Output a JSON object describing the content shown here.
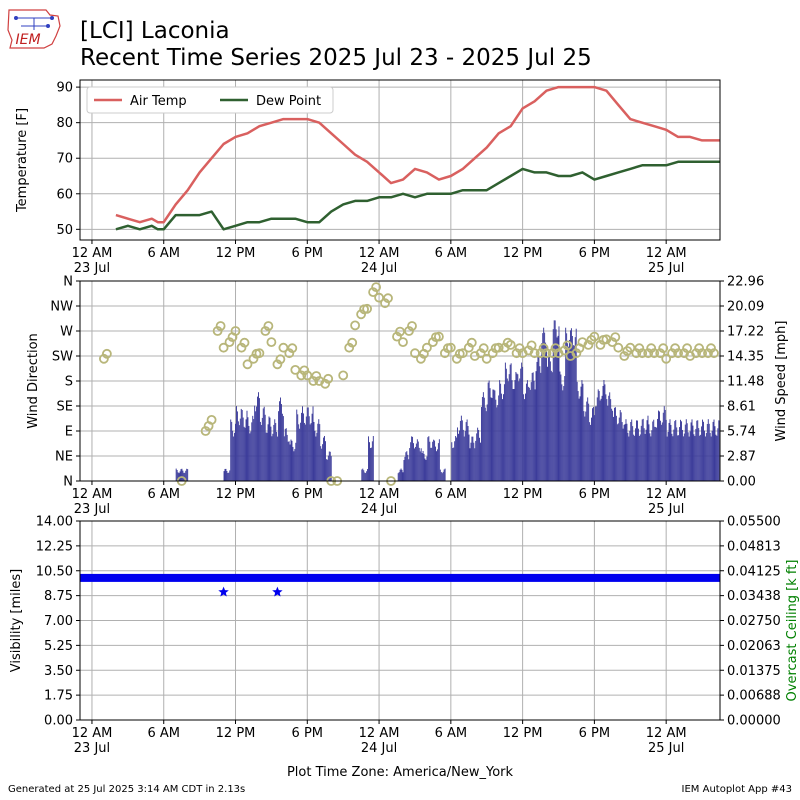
{
  "header": {
    "title_line1": "[LCI] Laconia",
    "title_line2": "Recent Time Series 2025 Jul 23 - 2025 Jul 25",
    "logo_text": "IEM"
  },
  "footer": {
    "generated": "Generated at 25 Jul 2025 3:14 AM CDT in 2.13s",
    "app": "IEM Autoplot App #43",
    "timezone_label": "Plot Time Zone: America/New_York"
  },
  "colors": {
    "air_temp": "#d9605f",
    "dew_point": "#2f6030",
    "wind_dir": "#b8b67a",
    "wind_speed": "#3b3b9a",
    "visibility": "#0000ee",
    "ceiling_axis": "#008000"
  },
  "x_axis": {
    "start_hour": -1,
    "end_hour": 52.5,
    "ticks": [
      {
        "hour": 0,
        "label": "12 AM",
        "sub": "23 Jul"
      },
      {
        "hour": 6,
        "label": "6 AM",
        "sub": ""
      },
      {
        "hour": 12,
        "label": "12 PM",
        "sub": ""
      },
      {
        "hour": 18,
        "label": "6 PM",
        "sub": ""
      },
      {
        "hour": 24,
        "label": "12 AM",
        "sub": "24 Jul"
      },
      {
        "hour": 30,
        "label": "6 AM",
        "sub": ""
      },
      {
        "hour": 36,
        "label": "12 PM",
        "sub": ""
      },
      {
        "hour": 42,
        "label": "6 PM",
        "sub": ""
      },
      {
        "hour": 48,
        "label": "12 AM",
        "sub": "25 Jul"
      }
    ]
  },
  "chart_data": [
    {
      "type": "line",
      "ylabel": "Temperature [F]",
      "ylim": [
        47,
        92
      ],
      "yticks": [
        50,
        60,
        70,
        80,
        90
      ],
      "grid": true,
      "legend": "top-left",
      "series": [
        {
          "name": "Air Temp",
          "x": [
            2,
            3,
            4,
            5,
            5.5,
            6,
            7,
            8,
            9,
            10,
            11,
            12,
            13,
            14,
            15,
            16,
            17,
            18,
            19,
            20,
            21,
            22,
            23,
            24,
            25,
            26,
            27,
            28,
            29,
            30,
            31,
            32,
            33,
            34,
            35,
            36,
            37,
            38,
            39,
            40,
            41,
            42,
            43,
            44,
            45,
            46,
            47,
            48,
            49,
            50,
            51,
            52,
            52.5
          ],
          "y": [
            54,
            53,
            52,
            53,
            52,
            52,
            57,
            61,
            66,
            70,
            74,
            76,
            77,
            79,
            80,
            81,
            81,
            81,
            80,
            77,
            74,
            71,
            69,
            66,
            63,
            64,
            67,
            66,
            64,
            65,
            67,
            70,
            73,
            77,
            79,
            84,
            86,
            89,
            90,
            90,
            90,
            90,
            89,
            85,
            81,
            80,
            79,
            78,
            76,
            76,
            75,
            75,
            75
          ]
        },
        {
          "name": "Dew Point",
          "x": [
            2,
            3,
            4,
            5,
            5.5,
            6,
            7,
            8,
            9,
            10,
            11,
            12,
            13,
            14,
            15,
            16,
            17,
            18,
            19,
            20,
            21,
            22,
            23,
            24,
            25,
            26,
            27,
            28,
            29,
            30,
            31,
            32,
            33,
            34,
            35,
            36,
            37,
            38,
            39,
            40,
            41,
            42,
            43,
            44,
            45,
            46,
            47,
            48,
            49,
            50,
            51,
            52,
            52.5
          ],
          "y": [
            50,
            51,
            50,
            51,
            50,
            50,
            54,
            54,
            54,
            55,
            50,
            51,
            52,
            52,
            53,
            53,
            53,
            52,
            52,
            55,
            57,
            58,
            58,
            59,
            59,
            60,
            59,
            60,
            60,
            60,
            61,
            61,
            61,
            63,
            65,
            67,
            66,
            66,
            65,
            65,
            66,
            64,
            65,
            66,
            67,
            68,
            68,
            68,
            69,
            69,
            69,
            69,
            69
          ]
        }
      ]
    },
    {
      "type": "bar",
      "ylabel": "Wind Direction",
      "y2label": "Wind Speed [mph]",
      "ylim": [
        0,
        360
      ],
      "yticks": [
        0,
        45,
        90,
        135,
        180,
        225,
        270,
        315,
        360
      ],
      "ytick_labels": [
        "N",
        "NE",
        "E",
        "SE",
        "S",
        "SW",
        "W",
        "NW",
        "N"
      ],
      "y2lim": [
        0,
        22.96
      ],
      "y2ticks": [
        "0.00",
        "2.87",
        "5.74",
        "8.61",
        "11.48",
        "14.35",
        "17.22",
        "20.09",
        "22.96"
      ],
      "grid": true,
      "wind_speed_mph": {
        "x": [
          -1,
          1,
          2,
          4,
          6,
          7,
          7.5,
          8,
          9,
          9.5,
          10,
          11,
          11.5,
          12,
          12.5,
          13,
          13.5,
          14,
          14.5,
          15,
          15.5,
          16,
          16.5,
          17,
          17.5,
          18,
          18.5,
          19,
          19.5,
          20,
          20.5,
          21,
          21.5,
          22,
          22.5,
          23,
          23.5,
          24,
          24.5,
          25,
          25.5,
          26,
          26.5,
          27,
          27.5,
          28,
          28.5,
          29,
          29.5,
          30,
          30.5,
          31,
          31.5,
          32,
          32.5,
          33,
          33.5,
          34,
          34.5,
          35,
          35.5,
          36,
          36.5,
          37,
          37.5,
          38,
          38.5,
          39,
          39.5,
          40,
          40.5,
          41,
          41.5,
          42,
          42.5,
          43,
          43.5,
          44,
          44.5,
          45,
          45.5,
          46,
          46.5,
          47,
          47.5,
          48,
          48.5,
          49,
          49.5,
          50,
          50.5,
          51,
          51.5,
          52
        ],
        "y": [
          0,
          0,
          0,
          0,
          0,
          1.5,
          1.5,
          0,
          0,
          0,
          0,
          1.5,
          5.7,
          7,
          6.6,
          6,
          8.6,
          7,
          6,
          5.7,
          8,
          5,
          4,
          6.6,
          7,
          7,
          5.7,
          4.3,
          3,
          0,
          0,
          0,
          0,
          0,
          1.5,
          4.3,
          0,
          0,
          0,
          0,
          1.5,
          3,
          4.3,
          4,
          3,
          4.3,
          4,
          1.5,
          0,
          4.3,
          6,
          5.7,
          4.3,
          5,
          8.6,
          10,
          9,
          10,
          12,
          11,
          12,
          10,
          11,
          13,
          16,
          13,
          17,
          11,
          16,
          16,
          10,
          8,
          7,
          9,
          10,
          8.6,
          7,
          6.6,
          5.7,
          5.7,
          5.7,
          6,
          5.7,
          6.6,
          7,
          5.7,
          5.7,
          5.7,
          5.7,
          5.7,
          5.7,
          5.7,
          5.7,
          5.7
        ]
      },
      "wind_direction_deg": {
        "x": [
          1,
          7.5,
          9.5,
          10,
          10.5,
          11,
          11.5,
          12,
          12.5,
          13,
          13.5,
          14,
          14.5,
          15,
          15.5,
          16,
          16.5,
          17,
          17.5,
          18,
          18.5,
          19,
          19.5,
          20,
          20.5,
          21,
          21.5,
          22,
          22.5,
          23,
          23.5,
          24,
          24.5,
          25,
          25.5,
          26,
          26.5,
          27,
          27.5,
          28,
          28.5,
          29,
          29.5,
          30,
          30.5,
          31,
          31.5,
          32,
          32.5,
          33,
          33.5,
          34,
          34.5,
          35,
          35.5,
          36,
          36.5,
          37,
          37.5,
          38,
          38.5,
          39,
          39.5,
          40,
          40.5,
          41,
          41.5,
          42,
          42.5,
          43,
          43.5,
          44,
          44.5,
          45,
          45.5,
          46,
          46.5,
          47,
          47.5,
          48,
          48.5,
          49,
          49.5,
          50,
          50.5,
          51,
          51.5,
          52
        ],
        "y": [
          220,
          0,
          90,
          110,
          270,
          240,
          250,
          270,
          240,
          210,
          220,
          230,
          270,
          250,
          210,
          240,
          230,
          200,
          190,
          190,
          180,
          180,
          175,
          0,
          0,
          190,
          240,
          280,
          300,
          310,
          340,
          330,
          320,
          0,
          260,
          250,
          270,
          230,
          220,
          240,
          250,
          260,
          230,
          240,
          220,
          230,
          240,
          225,
          230,
          220,
          230,
          240,
          240,
          245,
          230,
          230,
          235,
          230,
          230,
          230,
          230,
          230,
          235,
          225,
          230,
          250,
          245,
          260,
          245,
          255,
          250,
          240,
          225,
          240,
          230,
          230,
          230,
          230,
          230,
          220,
          230,
          230,
          230,
          225,
          230,
          230,
          230,
          230
        ]
      }
    },
    {
      "type": "scatter",
      "ylabel": "Visibility [miles]",
      "y2label": "Overcast Ceiling [k ft]",
      "ylim": [
        0,
        14
      ],
      "yticks": [
        "0.00",
        "1.75",
        "3.50",
        "5.25",
        "7.00",
        "8.75",
        "10.50",
        "12.25",
        "14.00"
      ],
      "y2lim": [
        0,
        0.055
      ],
      "y2ticks": [
        "0.00000",
        "0.00688",
        "0.01375",
        "0.02063",
        "0.02750",
        "0.03438",
        "0.04125",
        "0.04813",
        "0.05500"
      ],
      "grid": true,
      "visibility_constant_miles": 10,
      "visibility_exceptions": [
        {
          "x": 11,
          "y": 9
        },
        {
          "x": 15.5,
          "y": 9
        }
      ]
    }
  ]
}
